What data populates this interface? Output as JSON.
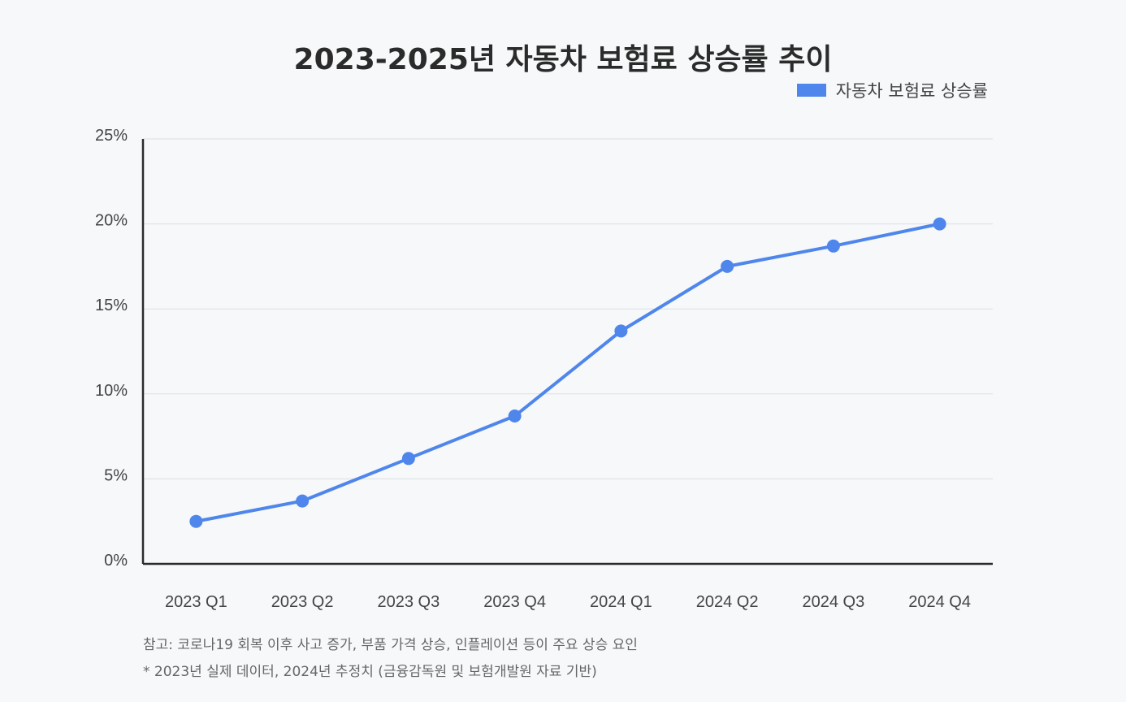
{
  "chart_data": {
    "type": "line",
    "title": "2023-2025년 자동차 보험료 상승률 추이",
    "categories": [
      "2023 Q1",
      "2023 Q2",
      "2023 Q3",
      "2023 Q4",
      "2024 Q1",
      "2024 Q2",
      "2024 Q3",
      "2024 Q4"
    ],
    "series": [
      {
        "name": "자동차 보험료 상승률",
        "values": [
          2.5,
          3.7,
          6.2,
          8.7,
          13.7,
          17.5,
          18.7,
          20.0
        ],
        "color": "#4f86eb"
      }
    ],
    "ylim": [
      0,
      25
    ],
    "yticks": [
      "0%",
      "5%",
      "10%",
      "15%",
      "20%",
      "25%"
    ],
    "xlabel": "",
    "ylabel": "",
    "grid": true,
    "legend_position": "top-right"
  },
  "notes": [
    "참고: 코로나19 회복 이후 사고 증가, 부품 가격 상승, 인플레이션 등이 주요 상승 요인",
    "* 2023년 실제 데이터, 2024년 추정치 (금융감독원 및 보험개발원 자료 기반)"
  ]
}
